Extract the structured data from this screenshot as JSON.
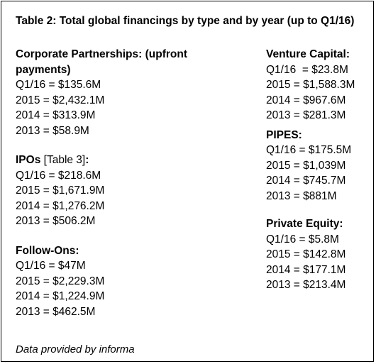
{
  "title": "Table 2: Total global financings by type and by year (up to Q1/16)",
  "left_column": [
    {
      "heading_lines": [
        "Corporate Partnerships: (upfront",
        "payments)"
      ],
      "rows": [
        "Q1/16 = $135.6M",
        "2015 = $2,432.1M",
        "2014 = $313.9M",
        "2013 = $58.9M"
      ]
    },
    {
      "heading_bold": "IPOs ",
      "heading_ref": "[Table 3]",
      "heading_tail": ":",
      "rows": [
        "Q1/16 = $218.6M",
        "2015 = $1,671.9M",
        "2014 = $1,276.2M",
        "2013 = $506.2M"
      ]
    },
    {
      "heading": "Follow-Ons:",
      "rows": [
        "Q1/16 = $47M",
        "2015 = $2,229.3M",
        "2014 = $1,224.9M",
        "2013 = $462.5M"
      ]
    }
  ],
  "right_column": [
    {
      "heading": "Venture Capital:",
      "rows": [
        "Q1/16  = $23.8M",
        "2015 = $1,588.3M",
        "2014 = $967.6M",
        "2013 = $281.3M"
      ]
    },
    {
      "heading": "PIPES:",
      "rows": [
        "Q1/16 = $175.5M",
        "2015 = $1,039M",
        "2014 = $745.7M",
        "2013 = $881M"
      ]
    },
    {
      "heading": "Private Equity:",
      "rows": [
        "Q1/16 = $5.8M",
        "2015 = $142.8M",
        "2014 = $177.1M",
        "2013 = $213.4M"
      ]
    }
  ],
  "footer": "Data provided by informa"
}
